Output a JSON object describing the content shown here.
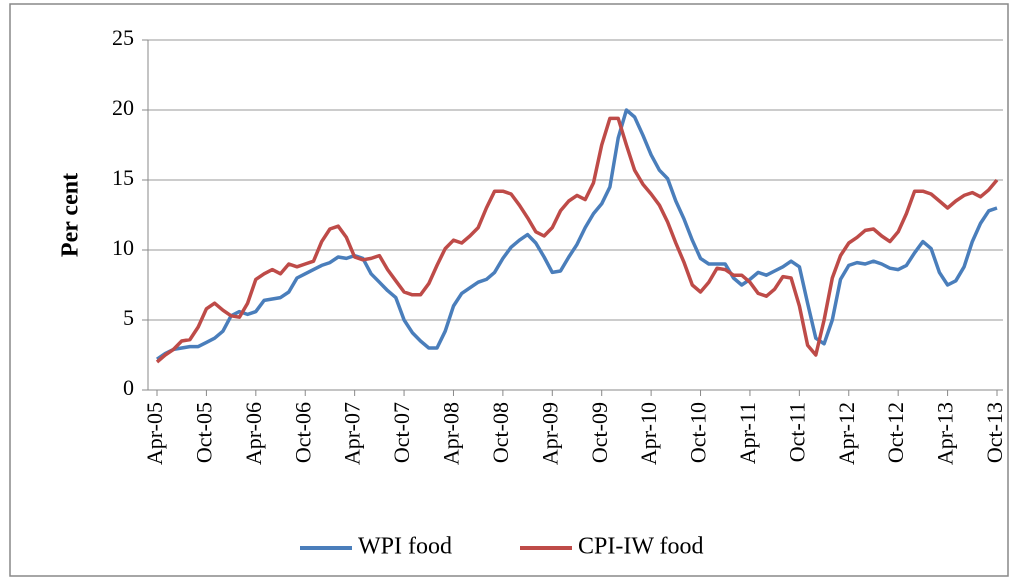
{
  "chart_data": {
    "type": "line",
    "y_label": "Per cent",
    "categories": [
      "Apr-05",
      null,
      null,
      null,
      null,
      null,
      "Oct-05",
      null,
      null,
      null,
      null,
      null,
      "Apr-06",
      null,
      null,
      null,
      null,
      null,
      "Oct-06",
      null,
      null,
      null,
      null,
      null,
      "Apr-07",
      null,
      null,
      null,
      null,
      null,
      "Oct-07",
      null,
      null,
      null,
      null,
      null,
      "Apr-08",
      null,
      null,
      null,
      null,
      null,
      "Oct-08",
      null,
      null,
      null,
      null,
      null,
      "Apr-09",
      null,
      null,
      null,
      null,
      null,
      "Oct-09",
      null,
      null,
      null,
      null,
      null,
      "Apr-10",
      null,
      null,
      null,
      null,
      null,
      "Oct-10",
      null,
      null,
      null,
      null,
      null,
      "Apr-11",
      null,
      null,
      null,
      null,
      null,
      "Oct-11",
      null,
      null,
      null,
      null,
      null,
      "Apr-12",
      null,
      null,
      null,
      null,
      null,
      "Oct-12",
      null,
      null,
      null,
      null,
      null,
      "Apr-13",
      null,
      null,
      null,
      null,
      null,
      "Oct-13"
    ],
    "series": [
      {
        "name": "WPI food",
        "color": "#4a7ebb",
        "values": [
          2.2,
          2.6,
          2.9,
          3.0,
          3.1,
          3.1,
          3.4,
          3.7,
          4.2,
          5.3,
          5.6,
          5.4,
          5.6,
          6.4,
          6.5,
          6.6,
          7.0,
          8.0,
          8.3,
          8.6,
          8.9,
          9.1,
          9.5,
          9.4,
          9.6,
          9.4,
          8.3,
          7.7,
          7.1,
          6.6,
          5.0,
          4.1,
          3.5,
          3.0,
          3.0,
          4.2,
          6.0,
          6.9,
          7.3,
          7.7,
          7.9,
          8.4,
          9.4,
          10.2,
          10.7,
          11.1,
          10.5,
          9.5,
          8.4,
          8.5,
          9.5,
          10.4,
          11.6,
          12.6,
          13.3,
          14.5,
          18.0,
          20.0,
          19.5,
          18.2,
          16.8,
          15.7,
          15.1,
          13.5,
          12.2,
          10.7,
          9.4,
          9.0,
          9.0,
          9.0,
          8.0,
          7.5,
          7.9,
          8.4,
          8.2,
          8.5,
          8.8,
          9.2,
          8.8,
          6.2,
          3.7,
          3.3,
          5.0,
          7.9,
          8.9,
          9.1,
          9.0,
          9.2,
          9.0,
          8.7,
          8.6,
          8.9,
          9.8,
          10.6,
          10.1,
          8.4,
          7.5,
          7.8,
          8.8,
          10.6,
          11.9,
          12.8,
          13.0
        ]
      },
      {
        "name": "CPI-IW food",
        "color": "#be4b48",
        "values": [
          2.0,
          2.5,
          2.9,
          3.5,
          3.6,
          4.5,
          5.8,
          6.2,
          5.7,
          5.3,
          5.2,
          6.2,
          7.9,
          8.3,
          8.6,
          8.3,
          9.0,
          8.8,
          9.0,
          9.2,
          10.6,
          11.5,
          11.7,
          10.9,
          9.5,
          9.3,
          9.4,
          9.6,
          8.6,
          7.8,
          7.0,
          6.8,
          6.8,
          7.6,
          8.9,
          10.1,
          10.7,
          10.5,
          11.0,
          11.6,
          13.0,
          14.2,
          14.2,
          14.0,
          13.2,
          12.3,
          11.3,
          11.0,
          11.6,
          12.8,
          13.5,
          13.9,
          13.6,
          14.8,
          17.5,
          19.4,
          19.4,
          17.5,
          15.7,
          14.7,
          14.0,
          13.2,
          12.0,
          10.5,
          9.1,
          7.5,
          7.0,
          7.7,
          8.7,
          8.6,
          8.2,
          8.2,
          7.7,
          6.9,
          6.7,
          7.2,
          8.1,
          8.0,
          6.0,
          3.2,
          2.5,
          5.0,
          8.0,
          9.6,
          10.5,
          10.9,
          11.4,
          11.5,
          11.0,
          10.6,
          11.3,
          12.6,
          14.2,
          14.2,
          14.0,
          13.5,
          13.0,
          13.5,
          13.9,
          14.1,
          13.8,
          14.3,
          15.0
        ]
      }
    ],
    "ylim": [
      0,
      25
    ],
    "yticks": [
      0,
      5,
      10,
      15,
      20,
      25
    ],
    "grid": true,
    "legend": "bottom"
  }
}
